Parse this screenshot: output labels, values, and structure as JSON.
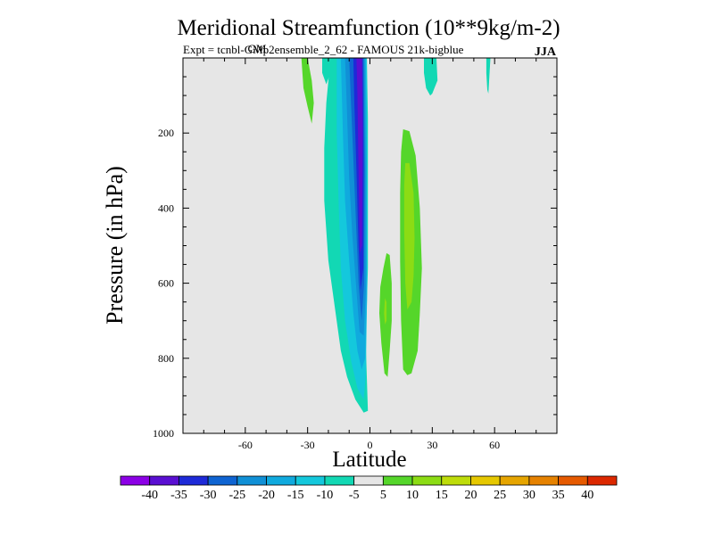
{
  "chart_data": {
    "type": "heatmap",
    "title": "Meridional Streamfunction (10**9kg/m-2)",
    "subtitle_main": "Expt = tcnbl-GMp2ensemble_2_62 - FAMOUS 21k-bigblue",
    "subtitle_overlay": "GM",
    "season": "JJA",
    "xlabel": "Latitude",
    "ylabel": "Pressure (in hPa)",
    "xlim": [
      -90,
      90
    ],
    "ylim": [
      1000,
      0
    ],
    "x_ticks": [
      -60,
      -30,
      0,
      30,
      60
    ],
    "y_ticks": [
      200,
      400,
      600,
      800,
      1000
    ],
    "background_color": "#e6e6e6",
    "levels": [
      -45,
      -40,
      -35,
      -30,
      -25,
      -20,
      -15,
      -10,
      -5,
      5,
      10,
      15,
      20,
      25,
      30,
      35,
      40,
      45
    ],
    "colorbar_labels": [
      "-40",
      "-35",
      "-30",
      "-25",
      "-20",
      "-15",
      "-10",
      "-5",
      "5",
      "10",
      "15",
      "20",
      "25",
      "30",
      "35",
      "40"
    ],
    "colorbar_colors": [
      "#8c00e6",
      "#5a0fd2",
      "#1e2ad8",
      "#0f64d2",
      "#1090d6",
      "#10aade",
      "#14c8dc",
      "#12d8b4",
      "#e6e6e6",
      "#55d62a",
      "#8cdc14",
      "#bedc0a",
      "#e6c800",
      "#e6a500",
      "#e68200",
      "#e65a00",
      "#dc2800"
    ],
    "contours": [
      {
        "name": "south-cell-outer",
        "color": "#12d8b4",
        "level": "-10",
        "outline": [
          [
            -19,
            0
          ],
          [
            -1.5,
            0
          ],
          [
            -1,
            160
          ],
          [
            -1,
            560
          ],
          [
            -2,
            760
          ],
          [
            -1,
            940
          ],
          [
            -3,
            945
          ],
          [
            -7,
            910
          ],
          [
            -11,
            850
          ],
          [
            -14,
            780
          ],
          [
            -17,
            660
          ],
          [
            -20,
            540
          ],
          [
            -22,
            380
          ],
          [
            -22,
            240
          ],
          [
            -21,
            120
          ]
        ]
      },
      {
        "name": "south-cell-l15",
        "color": "#14c8dc",
        "level": "-15",
        "outline": [
          [
            -16,
            0
          ],
          [
            -1.5,
            0
          ],
          [
            -1.3,
            250
          ],
          [
            -1.3,
            600
          ],
          [
            -2,
            850
          ],
          [
            -3,
            910
          ],
          [
            -6,
            880
          ],
          [
            -9,
            810
          ],
          [
            -12,
            700
          ],
          [
            -14,
            560
          ],
          [
            -15,
            400
          ],
          [
            -16,
            200
          ]
        ]
      },
      {
        "name": "south-cell-l20",
        "color": "#10aade",
        "level": "-20",
        "outline": [
          [
            -14,
            0
          ],
          [
            -2,
            0
          ],
          [
            -1.5,
            280
          ],
          [
            -1.5,
            640
          ],
          [
            -2.3,
            800
          ],
          [
            -4,
            830
          ],
          [
            -6,
            780
          ],
          [
            -8,
            680
          ],
          [
            -10,
            540
          ],
          [
            -12,
            380
          ],
          [
            -13,
            200
          ]
        ]
      },
      {
        "name": "south-cell-l25",
        "color": "#1090d6",
        "level": "-25",
        "outline": [
          [
            -12,
            0
          ],
          [
            -2.5,
            0
          ],
          [
            -2,
            300
          ],
          [
            -2,
            620
          ],
          [
            -3,
            740
          ],
          [
            -5,
            730
          ],
          [
            -6.5,
            620
          ],
          [
            -8.5,
            470
          ],
          [
            -10,
            320
          ],
          [
            -11,
            150
          ]
        ]
      },
      {
        "name": "south-cell-l30",
        "color": "#0f64d2",
        "level": "-30",
        "outline": [
          [
            -10,
            0
          ],
          [
            -3,
            0
          ],
          [
            -2.5,
            300
          ],
          [
            -2.8,
            600
          ],
          [
            -4,
            700
          ],
          [
            -5.5,
            600
          ],
          [
            -7,
            400
          ],
          [
            -8.5,
            200
          ]
        ]
      },
      {
        "name": "south-cell-l35",
        "color": "#1e2ad8",
        "level": "-35",
        "outline": [
          [
            -8,
            0
          ],
          [
            -3.5,
            0
          ],
          [
            -3,
            280
          ],
          [
            -3.2,
            560
          ],
          [
            -4.5,
            620
          ],
          [
            -5.5,
            500
          ],
          [
            -6.5,
            300
          ],
          [
            -7.5,
            120
          ]
        ]
      },
      {
        "name": "south-cell-core",
        "color": "#5a0fd2",
        "level": "-40",
        "outline": [
          [
            -6.5,
            0
          ],
          [
            -3.8,
            0
          ],
          [
            -3.5,
            200
          ],
          [
            -3.8,
            500
          ],
          [
            -4.8,
            520
          ],
          [
            -5.5,
            300
          ],
          [
            -6,
            100
          ]
        ]
      },
      {
        "name": "south-edge-green",
        "color": "#55d62a",
        "level": "5",
        "outline": [
          [
            -33,
            0
          ],
          [
            -30,
            0
          ],
          [
            -28,
            60
          ],
          [
            -27,
            120
          ],
          [
            -28,
            175
          ],
          [
            -30,
            130
          ],
          [
            -32,
            80
          ]
        ]
      },
      {
        "name": "south-edge-teal",
        "color": "#12d8b4",
        "level": "-10",
        "outline": [
          [
            -23,
            0
          ],
          [
            -19,
            0
          ],
          [
            -19,
            40
          ],
          [
            -21,
            70
          ],
          [
            -23,
            40
          ]
        ]
      },
      {
        "name": "north-cell-outer",
        "color": "#55d62a",
        "level": "5",
        "outline": [
          [
            16,
            190
          ],
          [
            19,
            195
          ],
          [
            22,
            260
          ],
          [
            24,
            400
          ],
          [
            25,
            560
          ],
          [
            24,
            680
          ],
          [
            23,
            780
          ],
          [
            20,
            840
          ],
          [
            18,
            845
          ],
          [
            16,
            830
          ],
          [
            15,
            700
          ],
          [
            14.5,
            540
          ],
          [
            14.5,
            360
          ],
          [
            15,
            250
          ]
        ]
      },
      {
        "name": "north-cell-core",
        "color": "#8cdc14",
        "level": "10",
        "outline": [
          [
            17,
            280
          ],
          [
            19,
            280
          ],
          [
            21,
            360
          ],
          [
            21.5,
            480
          ],
          [
            21,
            580
          ],
          [
            20,
            650
          ],
          [
            18,
            670
          ],
          [
            17,
            600
          ],
          [
            16.5,
            460
          ],
          [
            16.5,
            340
          ]
        ]
      },
      {
        "name": "north-cell-small",
        "color": "#55d62a",
        "level": "5",
        "outline": [
          [
            8,
            520
          ],
          [
            9.5,
            525
          ],
          [
            10.5,
            600
          ],
          [
            10.5,
            700
          ],
          [
            9.5,
            780
          ],
          [
            8.5,
            850
          ],
          [
            7,
            840
          ],
          [
            5.5,
            760
          ],
          [
            4.5,
            680
          ],
          [
            5,
            610
          ],
          [
            6.5,
            560
          ]
        ]
      },
      {
        "name": "north-cell-small-core",
        "color": "#8cdc14",
        "level": "10",
        "outline": [
          [
            7.2,
            640
          ],
          [
            8,
            650
          ],
          [
            8,
            700
          ],
          [
            7.2,
            710
          ],
          [
            6.8,
            680
          ]
        ]
      },
      {
        "name": "north-surface-blob",
        "color": "#12d8b4",
        "level": "-10",
        "outline": [
          [
            26,
            0
          ],
          [
            32,
            0
          ],
          [
            32.5,
            60
          ],
          [
            30,
            95
          ],
          [
            29,
            100
          ],
          [
            27,
            80
          ],
          [
            26,
            40
          ]
        ]
      },
      {
        "name": "north-edge-blob",
        "color": "#12d8b4",
        "level": "-10",
        "outline": [
          [
            56,
            0
          ],
          [
            58,
            0
          ],
          [
            57.5,
            50
          ],
          [
            57,
            95
          ],
          [
            56.5,
            85
          ],
          [
            56,
            40
          ]
        ]
      }
    ]
  }
}
